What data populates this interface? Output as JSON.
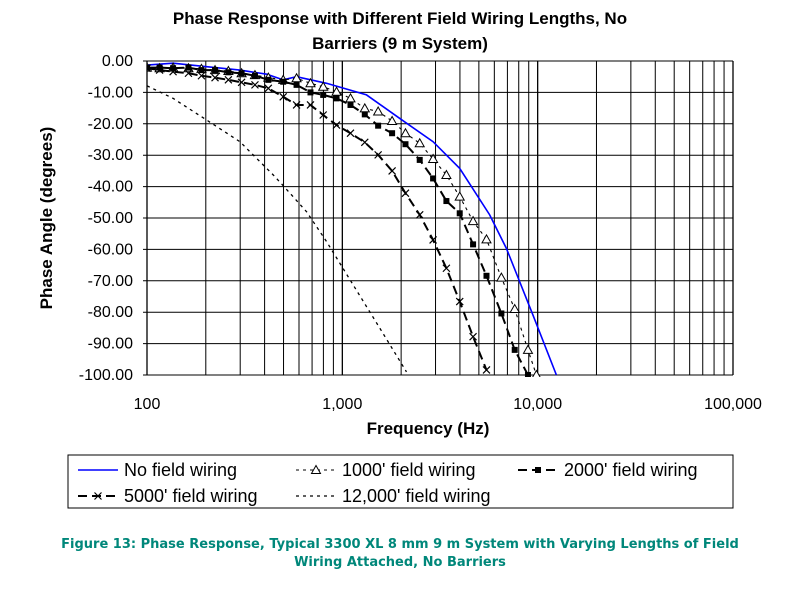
{
  "chart_data": {
    "type": "line",
    "title_lines": [
      "Phase Response with Different Field Wiring Lengths, No",
      "Barriers (9 m System)"
    ],
    "xlabel": "Frequency (Hz)",
    "ylabel": "Phase Angle (degrees)",
    "xscale": "log",
    "xlim": [
      100,
      100000
    ],
    "ylim": [
      -100,
      0
    ],
    "grid": true,
    "legend_position": "bottom",
    "x_ticks": [
      {
        "value": 100,
        "label": "100"
      },
      {
        "value": 1000,
        "label": "1,000"
      },
      {
        "value": 10000,
        "label": "10,000"
      },
      {
        "value": 100000,
        "label": "100,000"
      }
    ],
    "y_ticks": [
      {
        "value": 0,
        "label": "0.00"
      },
      {
        "value": -10,
        "label": "-10.00"
      },
      {
        "value": -20,
        "label": "-20.00"
      },
      {
        "value": -30,
        "label": "-30.00"
      },
      {
        "value": -40,
        "label": "-40.00"
      },
      {
        "value": -50,
        "label": "-50.00"
      },
      {
        "value": -60,
        "label": "-60.00"
      },
      {
        "value": -70,
        "label": "-70.00"
      },
      {
        "value": -80,
        "label": "-80.00"
      },
      {
        "value": -90,
        "label": "-90.00"
      },
      {
        "value": -100,
        "label": "-100.00"
      }
    ],
    "series": [
      {
        "name": "No field wiring",
        "color": "#0000ff",
        "style": "solid",
        "marker": "none",
        "x": [
          100,
          136,
          202,
          299,
          410,
          498,
          583,
          830,
          1330,
          1968,
          2915,
          3990,
          5680,
          6920,
          9460,
          12470
        ],
        "y": [
          -1.3,
          -0.7,
          -1.8,
          -2.9,
          -4.2,
          -6,
          -5,
          -7.1,
          -10.8,
          -18.3,
          -25.7,
          -34.2,
          -49,
          -59.7,
          -80.9,
          -100
        ]
      },
      {
        "name": "1000' field wiring",
        "color": "#000000",
        "style": "dashdot",
        "marker": "triangle",
        "x": [
          100,
          116,
          136,
          163,
          190,
          223,
          261,
          305,
          357,
          418,
          498,
          583,
          687,
          798,
          934,
          1101,
          1303,
          1525,
          1798,
          2105,
          2490,
          2915,
          3410,
          3990,
          4670,
          5470,
          6520,
          7630,
          8920,
          9850
        ],
        "y": [
          -2.1,
          -2.3,
          -2.1,
          -2.3,
          -2.5,
          -2.9,
          -3.2,
          -3.9,
          -4.5,
          -5.3,
          -6,
          -5.5,
          -7.1,
          -8.2,
          -9.8,
          -11.9,
          -15.1,
          -16.1,
          -19.1,
          -23,
          -26.2,
          -31.2,
          -36.3,
          -43.2,
          -51,
          -56.8,
          -69,
          -79,
          -92,
          -100
        ]
      },
      {
        "name": "2000' field wiring",
        "color": "#000000",
        "style": "longdash",
        "marker": "square",
        "x": [
          100,
          116,
          136,
          163,
          190,
          223,
          261,
          305,
          357,
          418,
          498,
          583,
          687,
          798,
          934,
          1101,
          1303,
          1525,
          1798,
          2105,
          2490,
          2915,
          3410,
          3990,
          4670,
          5470,
          6520,
          7630,
          8920
        ],
        "y": [
          -2.1,
          -2.1,
          -2.3,
          -2.1,
          -2.9,
          -2.9,
          -3.6,
          -3.9,
          -4.7,
          -6,
          -6.6,
          -7.6,
          -10,
          -10.8,
          -11.9,
          -14,
          -17,
          -20.6,
          -23,
          -26.5,
          -31.5,
          -37.4,
          -44.6,
          -48.5,
          -58.4,
          -68.4,
          -80.4,
          -92,
          -100
        ]
      },
      {
        "name": "5000' field wiring",
        "color": "#000000",
        "style": "longdash",
        "marker": "x",
        "x": [
          100,
          116,
          136,
          163,
          190,
          223,
          261,
          305,
          357,
          418,
          498,
          583,
          687,
          798,
          934,
          1101,
          1303,
          1525,
          1798,
          2105,
          2490,
          2915,
          3410,
          3990,
          4670,
          5470
        ],
        "y": [
          -2.3,
          -2.9,
          -3.4,
          -3.9,
          -4.7,
          -5.3,
          -6,
          -6.8,
          -7.6,
          -8.7,
          -11.4,
          -14,
          -14,
          -17.2,
          -20.4,
          -23,
          -25.9,
          -29.9,
          -35,
          -42.1,
          -49,
          -57,
          -66,
          -76.6,
          -87.8,
          -98.4
        ]
      },
      {
        "name": "12,000' field wiring",
        "color": "#000000",
        "style": "dotted",
        "marker": "none",
        "x": [
          100,
          136,
          202,
          299,
          443,
          498,
          656,
          830,
          1136,
          1556,
          2130
        ],
        "y": [
          -7.9,
          -11.9,
          -18.8,
          -25.7,
          -36.3,
          -39.7,
          -48,
          -57.5,
          -71.3,
          -85.1,
          -99
        ]
      }
    ]
  },
  "caption": {
    "line1": "Figure 13:  Phase Response, Typical 3300 XL 8 mm 9 m System with Varying Lengths of Field",
    "line2": "Wiring Attached, No Barriers"
  }
}
